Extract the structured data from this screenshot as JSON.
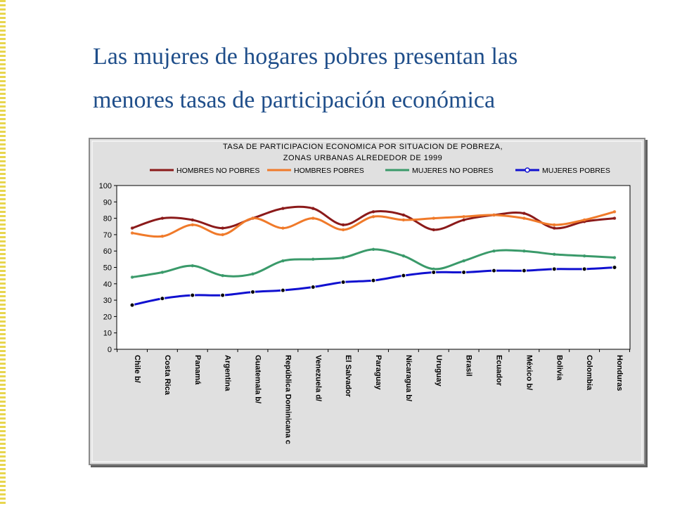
{
  "slide": {
    "title_line1": "Las mujeres de hogares pobres presentan las",
    "title_line2": "menores tasas de participación económica"
  },
  "chart_data": {
    "type": "line",
    "title": "TASA DE PARTICIPACION ECONOMICA POR SITUACION DE POBREZA,",
    "subtitle": "ZONAS URBANAS ALREDEDOR DE 1999",
    "legend_position": "top",
    "categories": [
      "Chile b/",
      "Costa Rica",
      "Panamá",
      "Argentina",
      "Guatemala b/",
      "República Dominicana c",
      "Venezuela d/",
      "El Salvador",
      "Paraguay",
      "Nicaragua b/",
      "Uruguay",
      "Brasil",
      "Ecuador",
      "México b/",
      "Bolivia",
      "Colombia",
      "Honduras"
    ],
    "ylim": [
      0,
      100
    ],
    "yticks": [
      0,
      10,
      20,
      30,
      40,
      50,
      60,
      70,
      80,
      90,
      100
    ],
    "grid": false,
    "series": [
      {
        "name": "HOMBRES NO POBRES",
        "color": "#8b1a1a",
        "values": [
          74,
          80,
          79,
          74,
          80,
          86,
          86,
          76,
          84,
          82,
          73,
          79,
          82,
          83,
          74,
          78,
          80
        ]
      },
      {
        "name": "HOMBRES POBRES",
        "color": "#f07a2a",
        "values": [
          71,
          69,
          76,
          70,
          80,
          74,
          80,
          73,
          81,
          79,
          80,
          81,
          82,
          80,
          76,
          79,
          84
        ]
      },
      {
        "name": "MUJERES NO POBRES",
        "color": "#3a9a6a",
        "values": [
          44,
          47,
          51,
          45,
          46,
          54,
          55,
          56,
          61,
          57,
          49,
          54,
          60,
          60,
          58,
          57,
          56
        ]
      },
      {
        "name": "MUJERES POBRES",
        "color": "#1010d0",
        "values": [
          27,
          31,
          33,
          33,
          35,
          36,
          38,
          41,
          42,
          45,
          47,
          47,
          48,
          48,
          49,
          49,
          50
        ]
      }
    ]
  }
}
